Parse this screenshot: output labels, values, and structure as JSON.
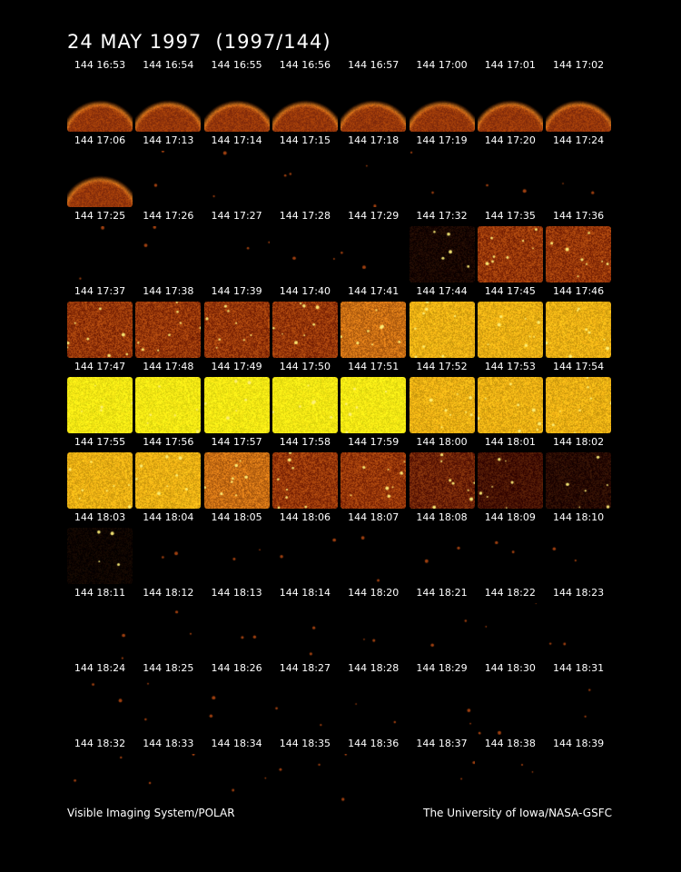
{
  "title": "24 MAY 1997  (1997/144)",
  "footer": {
    "left": "Visible Imaging System/POLAR",
    "right": "The University of Iowa/NASA-GSFC"
  },
  "frames": [
    {
      "label": "144 16:53",
      "kind": "earth"
    },
    {
      "label": "144 16:54",
      "kind": "earth"
    },
    {
      "label": "144 16:55",
      "kind": "earth"
    },
    {
      "label": "144 16:56",
      "kind": "earth"
    },
    {
      "label": "144 16:57",
      "kind": "earth"
    },
    {
      "label": "144 17:00",
      "kind": "earth"
    },
    {
      "label": "144 17:01",
      "kind": "earth"
    },
    {
      "label": "144 17:02",
      "kind": "earth"
    },
    {
      "label": "144 17:06",
      "kind": "earth"
    },
    {
      "label": "144 17:13",
      "kind": "dark"
    },
    {
      "label": "144 17:14",
      "kind": "dark"
    },
    {
      "label": "144 17:15",
      "kind": "dark"
    },
    {
      "label": "144 17:18",
      "kind": "dark"
    },
    {
      "label": "144 17:19",
      "kind": "dark"
    },
    {
      "label": "144 17:20",
      "kind": "dark"
    },
    {
      "label": "144 17:24",
      "kind": "dark"
    },
    {
      "label": "144 17:25",
      "kind": "dark"
    },
    {
      "label": "144 17:26",
      "kind": "dark"
    },
    {
      "label": "144 17:27",
      "kind": "dark"
    },
    {
      "label": "144 17:28",
      "kind": "dark"
    },
    {
      "label": "144 17:29",
      "kind": "dark"
    },
    {
      "label": "144 17:32",
      "kind": "dim"
    },
    {
      "label": "144 17:35",
      "kind": "rust"
    },
    {
      "label": "144 17:36",
      "kind": "rust"
    },
    {
      "label": "144 17:37",
      "kind": "rust"
    },
    {
      "label": "144 17:38",
      "kind": "rust"
    },
    {
      "label": "144 17:39",
      "kind": "rust"
    },
    {
      "label": "144 17:40",
      "kind": "rust"
    },
    {
      "label": "144 17:41",
      "kind": "orange"
    },
    {
      "label": "144 17:44",
      "kind": "gold"
    },
    {
      "label": "144 17:45",
      "kind": "gold"
    },
    {
      "label": "144 17:46",
      "kind": "gold"
    },
    {
      "label": "144 17:47",
      "kind": "yellow"
    },
    {
      "label": "144 17:48",
      "kind": "yellow"
    },
    {
      "label": "144 17:49",
      "kind": "yellow"
    },
    {
      "label": "144 17:50",
      "kind": "yellow"
    },
    {
      "label": "144 17:51",
      "kind": "yellow"
    },
    {
      "label": "144 17:52",
      "kind": "gold"
    },
    {
      "label": "144 17:53",
      "kind": "gold"
    },
    {
      "label": "144 17:54",
      "kind": "gold"
    },
    {
      "label": "144 17:55",
      "kind": "gold"
    },
    {
      "label": "144 17:56",
      "kind": "gold"
    },
    {
      "label": "144 17:57",
      "kind": "orange"
    },
    {
      "label": "144 17:58",
      "kind": "rust"
    },
    {
      "label": "144 17:59",
      "kind": "rust"
    },
    {
      "label": "144 18:00",
      "kind": "rustdark"
    },
    {
      "label": "144 18:01",
      "kind": "deep"
    },
    {
      "label": "144 18:02",
      "kind": "deeper"
    },
    {
      "label": "144 18:03",
      "kind": "faint"
    },
    {
      "label": "144 18:04",
      "kind": "dark"
    },
    {
      "label": "144 18:05",
      "kind": "dark"
    },
    {
      "label": "144 18:06",
      "kind": "dark"
    },
    {
      "label": "144 18:07",
      "kind": "dark"
    },
    {
      "label": "144 18:08",
      "kind": "dark"
    },
    {
      "label": "144 18:09",
      "kind": "dark"
    },
    {
      "label": "144 18:10",
      "kind": "dark"
    },
    {
      "label": "144 18:11",
      "kind": "dark"
    },
    {
      "label": "144 18:12",
      "kind": "dark"
    },
    {
      "label": "144 18:13",
      "kind": "dark"
    },
    {
      "label": "144 18:14",
      "kind": "dark"
    },
    {
      "label": "144 18:20",
      "kind": "dark"
    },
    {
      "label": "144 18:21",
      "kind": "dark"
    },
    {
      "label": "144 18:22",
      "kind": "dark"
    },
    {
      "label": "144 18:23",
      "kind": "dark"
    },
    {
      "label": "144 18:24",
      "kind": "dark"
    },
    {
      "label": "144 18:25",
      "kind": "dark"
    },
    {
      "label": "144 18:26",
      "kind": "dark"
    },
    {
      "label": "144 18:27",
      "kind": "dark"
    },
    {
      "label": "144 18:28",
      "kind": "dark"
    },
    {
      "label": "144 18:29",
      "kind": "dark"
    },
    {
      "label": "144 18:30",
      "kind": "dark"
    },
    {
      "label": "144 18:31",
      "kind": "dark"
    },
    {
      "label": "144 18:32",
      "kind": "dark"
    },
    {
      "label": "144 18:33",
      "kind": "dark"
    },
    {
      "label": "144 18:34",
      "kind": "dark"
    },
    {
      "label": "144 18:35",
      "kind": "dark"
    },
    {
      "label": "144 18:36",
      "kind": "dark"
    },
    {
      "label": "144 18:37",
      "kind": "dark"
    },
    {
      "label": "144 18:38",
      "kind": "dark"
    },
    {
      "label": "144 18:39",
      "kind": "none"
    }
  ]
}
